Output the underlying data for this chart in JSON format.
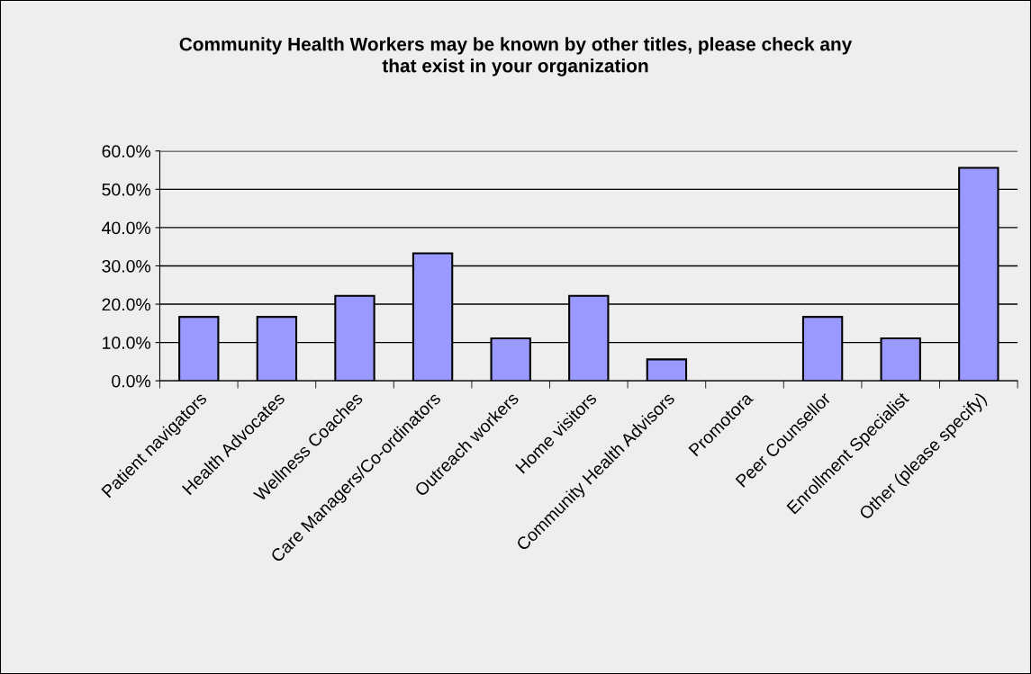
{
  "chart_data": {
    "type": "bar",
    "title": "Community Health Workers may be known by other titles, please check any\nthat exist in your organization",
    "categories": [
      "Patient navigators",
      "Health Advocates",
      "Wellness Coaches",
      "Care Managers/Co-ordinators",
      "Outreach workers",
      "Home visitors",
      "Community Health Advisors",
      "Promotora",
      "Peer Counsellor",
      "Enrollment Specialist",
      "Other (please specify)"
    ],
    "values": [
      16.7,
      16.7,
      22.2,
      33.3,
      11.1,
      22.2,
      5.6,
      0,
      16.7,
      11.1,
      55.6
    ],
    "color": "#9999ff",
    "ylim": [
      0,
      60
    ],
    "yticks": [
      {
        "value": 0,
        "label": "0.0%"
      },
      {
        "value": 10,
        "label": "10.0%"
      },
      {
        "value": 20,
        "label": "20.0%"
      },
      {
        "value": 30,
        "label": "30.0%"
      },
      {
        "value": 40,
        "label": "40.0%"
      },
      {
        "value": 50,
        "label": "50.0%"
      },
      {
        "value": 60,
        "label": "60.0%"
      }
    ],
    "grid": "y",
    "legend": false
  }
}
